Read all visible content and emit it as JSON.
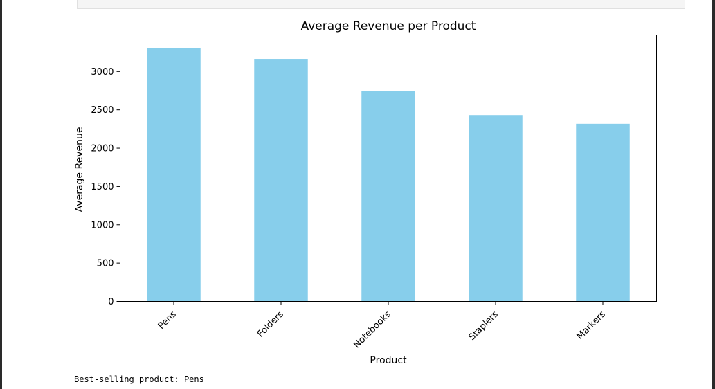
{
  "output": {
    "text": "Best-selling product: Pens"
  },
  "colors": {
    "bar": "#87ceeb",
    "axis": "#000000",
    "prev_cell_background": "#f5f5f5"
  },
  "chart_data": {
    "type": "bar",
    "title": "Average Revenue per Product",
    "xlabel": "Product",
    "ylabel": "Average Revenue",
    "categories": [
      "Pens",
      "Folders",
      "Notebooks",
      "Staplers",
      "Markers"
    ],
    "values": [
      3310,
      3165,
      2748,
      2432,
      2318
    ],
    "ylim": [
      0,
      3477
    ],
    "yticks": [
      0,
      500,
      1000,
      1500,
      2000,
      2500,
      3000
    ],
    "xtick_rotation": 45,
    "grid": false,
    "legend": "none"
  }
}
